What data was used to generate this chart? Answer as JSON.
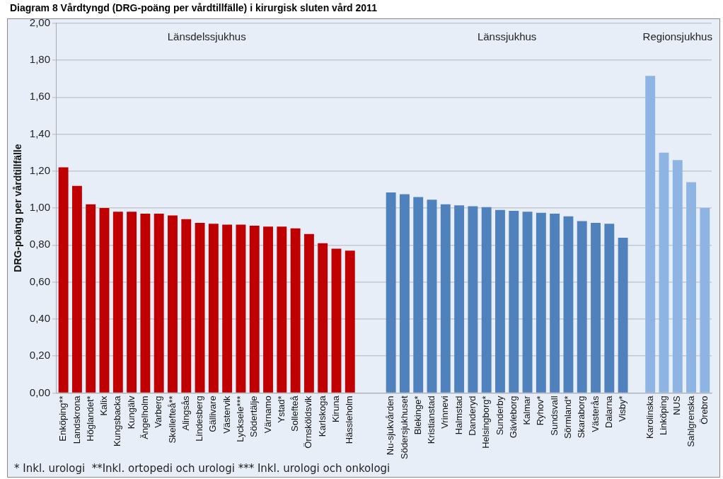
{
  "chart_data": {
    "type": "bar",
    "title": "Diagram 8 Vårdtyngd (DRG-poäng per vårdtillfälle) i kirurgisk sluten vård 2011",
    "ylabel": "DRG-poäng per vårdtillfälle",
    "categories": [
      "Enköping**",
      "Landskrona",
      "Höglandet*",
      "Kalix",
      "Kungsbacka",
      "Kungälv",
      "Ängelholm",
      "Varberg",
      "Skellefteå**",
      "Alingsås",
      "Lindesberg",
      "Gällivare",
      "Västervik",
      "Lycksele***",
      "Södertälje",
      "Värnamo",
      "Ystad*",
      "Sollefteå",
      "Örnsköldsvik",
      "Karlskoga",
      "Kiruna",
      "Hässleholm",
      null,
      null,
      "Nu-sjukvården",
      "Södersjukhuset",
      "Blekinge*",
      "Kristianstad",
      "Vrinnevi",
      "Halmstad",
      "Danderyd",
      "Helsingborg*",
      "Sunderby",
      "Gävleborg",
      "Kalmar",
      "Ryhov*",
      "Sundsvall",
      "Sörmland*",
      "Skaraborg",
      "Västerås",
      "Dalarna",
      "Visby*",
      null,
      "Karolinska",
      "Linköping",
      "NUS",
      "Sahlgrenska",
      "Örebro"
    ],
    "values": [
      1.22,
      1.12,
      1.02,
      1.0,
      0.98,
      0.98,
      0.97,
      0.97,
      0.96,
      0.94,
      0.92,
      0.915,
      0.91,
      0.91,
      0.905,
      0.9,
      0.9,
      0.89,
      0.86,
      0.81,
      0.78,
      0.77,
      null,
      null,
      1.085,
      1.075,
      1.06,
      1.045,
      1.02,
      1.015,
      1.01,
      1.005,
      0.99,
      0.985,
      0.98,
      0.975,
      0.97,
      0.955,
      0.93,
      0.92,
      0.915,
      0.84,
      null,
      1.715,
      1.3,
      1.26,
      1.14,
      1.0
    ],
    "colors": [
      "#c00000",
      "#c00000",
      "#c00000",
      "#c00000",
      "#c00000",
      "#c00000",
      "#c00000",
      "#c00000",
      "#c00000",
      "#c00000",
      "#c00000",
      "#c00000",
      "#c00000",
      "#c00000",
      "#c00000",
      "#c00000",
      "#c00000",
      "#c00000",
      "#c00000",
      "#c00000",
      "#c00000",
      "#c00000",
      "#c00000",
      "#c00000",
      "#4f81bd",
      "#4f81bd",
      "#4f81bd",
      "#4f81bd",
      "#4f81bd",
      "#4f81bd",
      "#4f81bd",
      "#4f81bd",
      "#4f81bd",
      "#4f81bd",
      "#4f81bd",
      "#4f81bd",
      "#4f81bd",
      "#4f81bd",
      "#4f81bd",
      "#4f81bd",
      "#4f81bd",
      "#4f81bd",
      "#4f81bd",
      "#8db4e2",
      "#8db4e2",
      "#8db4e2",
      "#8db4e2",
      "#8db4e2"
    ],
    "ylim": [
      0,
      2
    ],
    "yticks": [
      {
        "value": 0,
        "label": "0,00"
      },
      {
        "value": 0.2,
        "label": "0,20"
      },
      {
        "value": 0.4,
        "label": "0,40"
      },
      {
        "value": 0.6,
        "label": "0,60"
      },
      {
        "value": 0.8,
        "label": "0,80"
      },
      {
        "value": 1,
        "label": "1,00"
      },
      {
        "value": 1.2,
        "label": "1,20"
      },
      {
        "value": 1.4,
        "label": "1,40"
      },
      {
        "value": 1.6,
        "label": "1,60"
      },
      {
        "value": 1.8,
        "label": "1,80"
      },
      {
        "value": 2,
        "label": "2,00"
      }
    ],
    "grid": "y",
    "legend": false,
    "annotations": [
      "Länsdelssjukhus",
      "Länssjukhus",
      "Regionsjukhus",
      "* Inkl. urologi  **Inkl. ortopedi och urologi *** Inkl. urologi och onkologi"
    ]
  }
}
